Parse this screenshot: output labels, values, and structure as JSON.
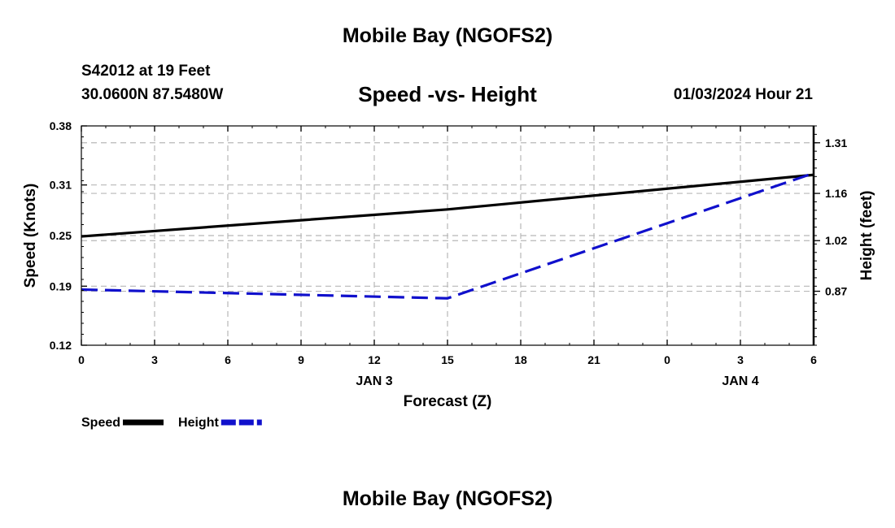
{
  "header": {
    "title": "Mobile Bay (NGOFS2)",
    "station": "S42012 at 19 Feet",
    "coords": "30.0600N  87.5480W",
    "chart_title": "Speed -vs- Height",
    "datetime": "01/03/2024 Hour 21"
  },
  "footer": {
    "title": "Mobile Bay (NGOFS2)"
  },
  "chart_data": {
    "type": "line",
    "title": "Speed -vs- Height",
    "xlabel": "Forecast (Z)",
    "ylabel_left": "Speed (Knots)",
    "ylabel_right": "Height (feet)",
    "x_hours": [
      0,
      30
    ],
    "x_tick_hours": [
      0,
      3,
      6,
      9,
      12,
      15,
      18,
      21,
      24,
      27,
      30
    ],
    "x_tick_labels": [
      "0",
      "3",
      "6",
      "9",
      "12",
      "15",
      "18",
      "21",
      "0",
      "3",
      "6"
    ],
    "date_labels": [
      {
        "hour": 12,
        "label": "JAN 3"
      },
      {
        "hour": 27,
        "label": "JAN 4"
      }
    ],
    "ylim_left": [
      0.12,
      0.38
    ],
    "yticks_left": [
      0.12,
      0.19,
      0.25,
      0.31,
      0.38
    ],
    "ytick_labels_left": [
      "0.12",
      "0.19",
      "0.25",
      "0.31",
      "0.38"
    ],
    "ylim_right": [
      0.71,
      1.36
    ],
    "yticks_right": [
      0.87,
      1.02,
      1.16,
      1.31
    ],
    "ytick_labels_right": [
      "0.87",
      "1.02",
      "1.16",
      "1.31"
    ],
    "grid": true,
    "series": [
      {
        "name": "Speed",
        "axis": "left",
        "color": "#000000",
        "dash": false,
        "x": [
          0,
          15,
          30
        ],
        "values": [
          0.249,
          0.281,
          0.322
        ]
      },
      {
        "name": "Height",
        "axis": "right",
        "color": "#1010cc",
        "dash": true,
        "x": [
          0,
          15,
          30
        ],
        "values": [
          0.875,
          0.849,
          1.22
        ]
      }
    ],
    "legend": [
      {
        "label": "Speed",
        "color": "#000000",
        "dash": false
      },
      {
        "label": "Height",
        "color": "#1010cc",
        "dash": true
      }
    ]
  }
}
